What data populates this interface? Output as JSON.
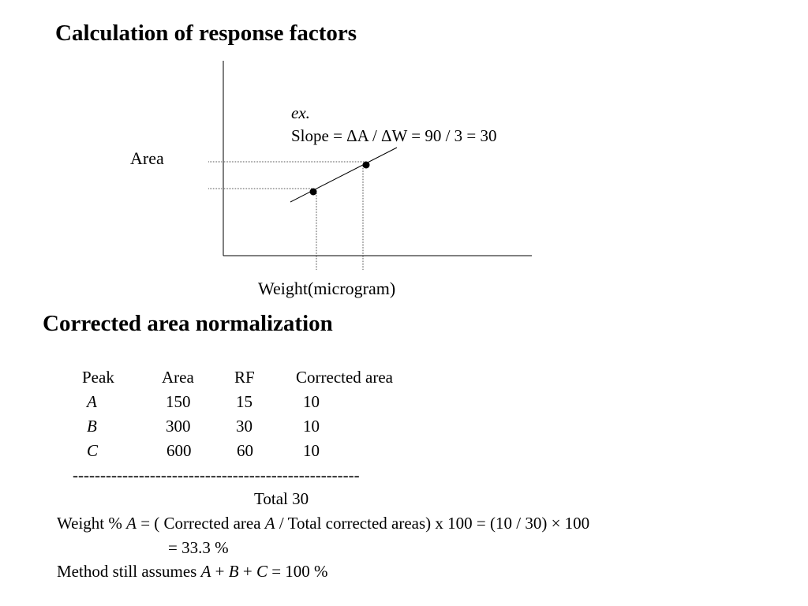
{
  "slide": {
    "title1": "Calculation of response factors",
    "title2": "Corrected area normalization"
  },
  "figure": {
    "ylabel": "Area",
    "xlabel": "Weight(microgram)",
    "example_label": "ex.",
    "slope_text": "Slope  = ΔA / ΔW = 90 / 3 = 30"
  },
  "table": {
    "headers": [
      "Peak",
      "Area",
      "RF",
      "Corrected area"
    ],
    "rows": [
      {
        "peak": "A",
        "area": "150",
        "rf": "15",
        "corrected": "10"
      },
      {
        "peak": "B",
        "area": "300",
        "rf": "30",
        "corrected": "10"
      },
      {
        "peak": "C",
        "area": "600",
        "rf": "60",
        "corrected": "10"
      }
    ],
    "separator": "----------------------------------------------------",
    "total": "Total 30"
  },
  "formula": {
    "prefix": "Weight % ",
    "var_a": "A",
    "mid": "  = ( Corrected area ",
    "var_a2": "A",
    "suffix": " / Total corrected areas) x 100  = (10 / 30) × 100",
    "result": "= 33.3 %"
  },
  "method": {
    "prefix": "Method still assumes ",
    "a": "A",
    "plus1": " + ",
    "b": "B",
    "plus2": " + ",
    "c": "C",
    "suffix": " = 100 %"
  }
}
